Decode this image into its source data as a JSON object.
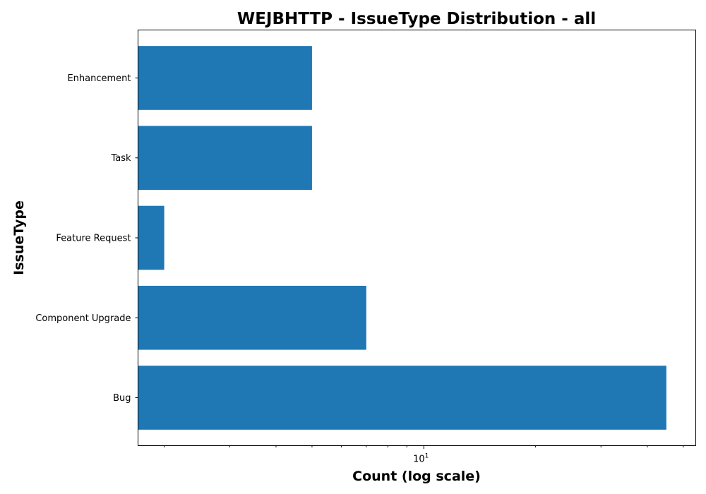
{
  "chart_data": {
    "type": "bar",
    "orientation": "horizontal",
    "title": "WEJBHTTP - IssueType Distribution - all",
    "xlabel": "Count (log scale)",
    "ylabel": "IssueType",
    "x_scale": "log",
    "xlim": [
      1.7,
      54
    ],
    "x_major_ticks": [
      {
        "value": 10,
        "base": "10",
        "exp": "1"
      }
    ],
    "x_minor_ticks": [
      2,
      3,
      4,
      5,
      6,
      7,
      8,
      9,
      20,
      30,
      40,
      50
    ],
    "categories": [
      "Bug",
      "Component Upgrade",
      "Feature Request",
      "Task",
      "Enhancement"
    ],
    "values": [
      45,
      7,
      2,
      5,
      5
    ],
    "bar_color": "#1f77b4",
    "grid": false,
    "legend": "none"
  }
}
